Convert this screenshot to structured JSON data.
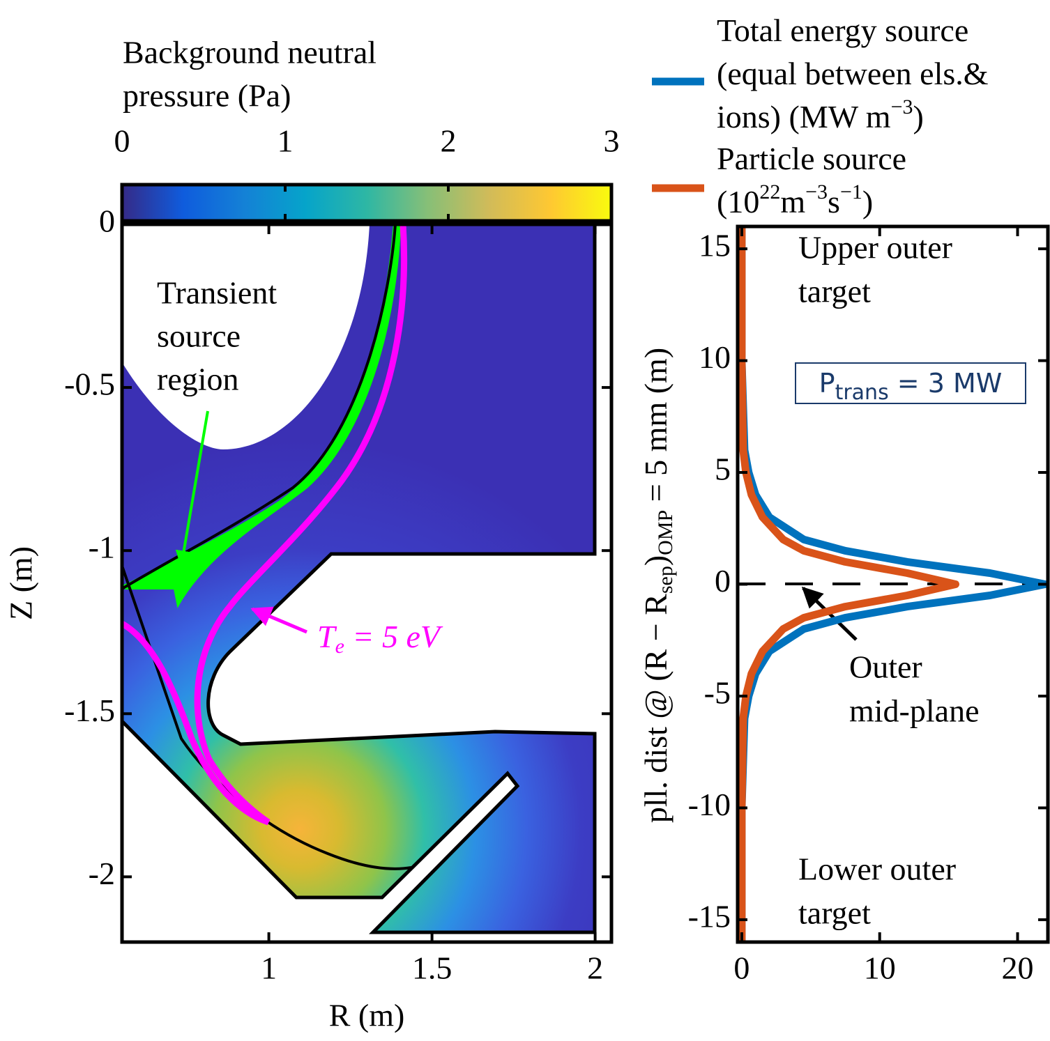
{
  "chart_data": [
    {
      "type": "heatmap",
      "xlabel": "R (m)",
      "ylabel": "Z (m)",
      "xlim": [
        0.55,
        2.05
      ],
      "ylim": [
        -2.2,
        0
      ],
      "xticks": [
        1,
        1.5,
        2
      ],
      "yticks": [
        0,
        -0.5,
        -1,
        -1.5,
        -2
      ],
      "colorbar": {
        "label": [
          "Background neutral",
          "pressure (Pa)"
        ],
        "lim": [
          0,
          3
        ],
        "ticks": [
          0,
          1,
          2,
          3
        ],
        "colormap": "parula"
      },
      "annotations": [
        {
          "lines": [
            "Transient",
            "source",
            "region"
          ],
          "color": "#00ff00"
        },
        {
          "text": [
            "T",
            {
              "sub": "e"
            },
            " = 5 eV"
          ],
          "color": "#ff00ff"
        }
      ]
    },
    {
      "type": "line",
      "ylabel": [
        "pll. dist @ (R − R",
        {
          "sub": "sep"
        },
        ")",
        {
          "sub": "OMP"
        },
        " = 5 mm (m)"
      ],
      "xlim": [
        -0.3,
        22.2
      ],
      "ylim": [
        -16,
        16
      ],
      "xticks": [
        0,
        10,
        20
      ],
      "yticks": [
        15,
        10,
        5,
        0,
        -5,
        -10,
        -15
      ],
      "y": [
        -16,
        -10,
        -6,
        -5,
        -4,
        -3,
        -2,
        -1.5,
        -1,
        -0.5,
        0,
        0.5,
        1,
        1.5,
        2,
        3,
        4,
        5,
        6,
        10,
        16
      ],
      "series": [
        {
          "name": [
            [
              "Total energy source"
            ],
            [
              "(equal between els.&"
            ],
            [
              "ions) (MW m",
              {
                "sup": "−3"
              },
              ")"
            ]
          ],
          "color": "#0072bd",
          "values": [
            0,
            0,
            0.2,
            0.5,
            1,
            2,
            4.5,
            7.5,
            12,
            18,
            22,
            18,
            12,
            7.5,
            4.5,
            2,
            1,
            0.5,
            0.2,
            0,
            0
          ]
        },
        {
          "name": [
            [
              "Particle source"
            ],
            [
              "(10",
              {
                "sup": "22"
              },
              "m",
              {
                "sup": "−3"
              },
              "s",
              {
                "sup": "−1"
              },
              ")"
            ]
          ],
          "color": "#d95319",
          "values": [
            0,
            0,
            0.1,
            0.3,
            0.7,
            1.5,
            3,
            4.5,
            7.5,
            12,
            15.5,
            12,
            7.5,
            4.5,
            3,
            1.5,
            0.7,
            0.3,
            0.1,
            0,
            0
          ]
        }
      ],
      "annotations": [
        {
          "lines": [
            "Upper outer",
            "target"
          ]
        },
        {
          "lines": [
            "Lower outer",
            "target"
          ]
        },
        {
          "lines": [
            "Outer",
            "mid-plane"
          ]
        }
      ],
      "box": [
        "P",
        {
          "sub": "trans"
        },
        " = 3 MW"
      ]
    }
  ]
}
